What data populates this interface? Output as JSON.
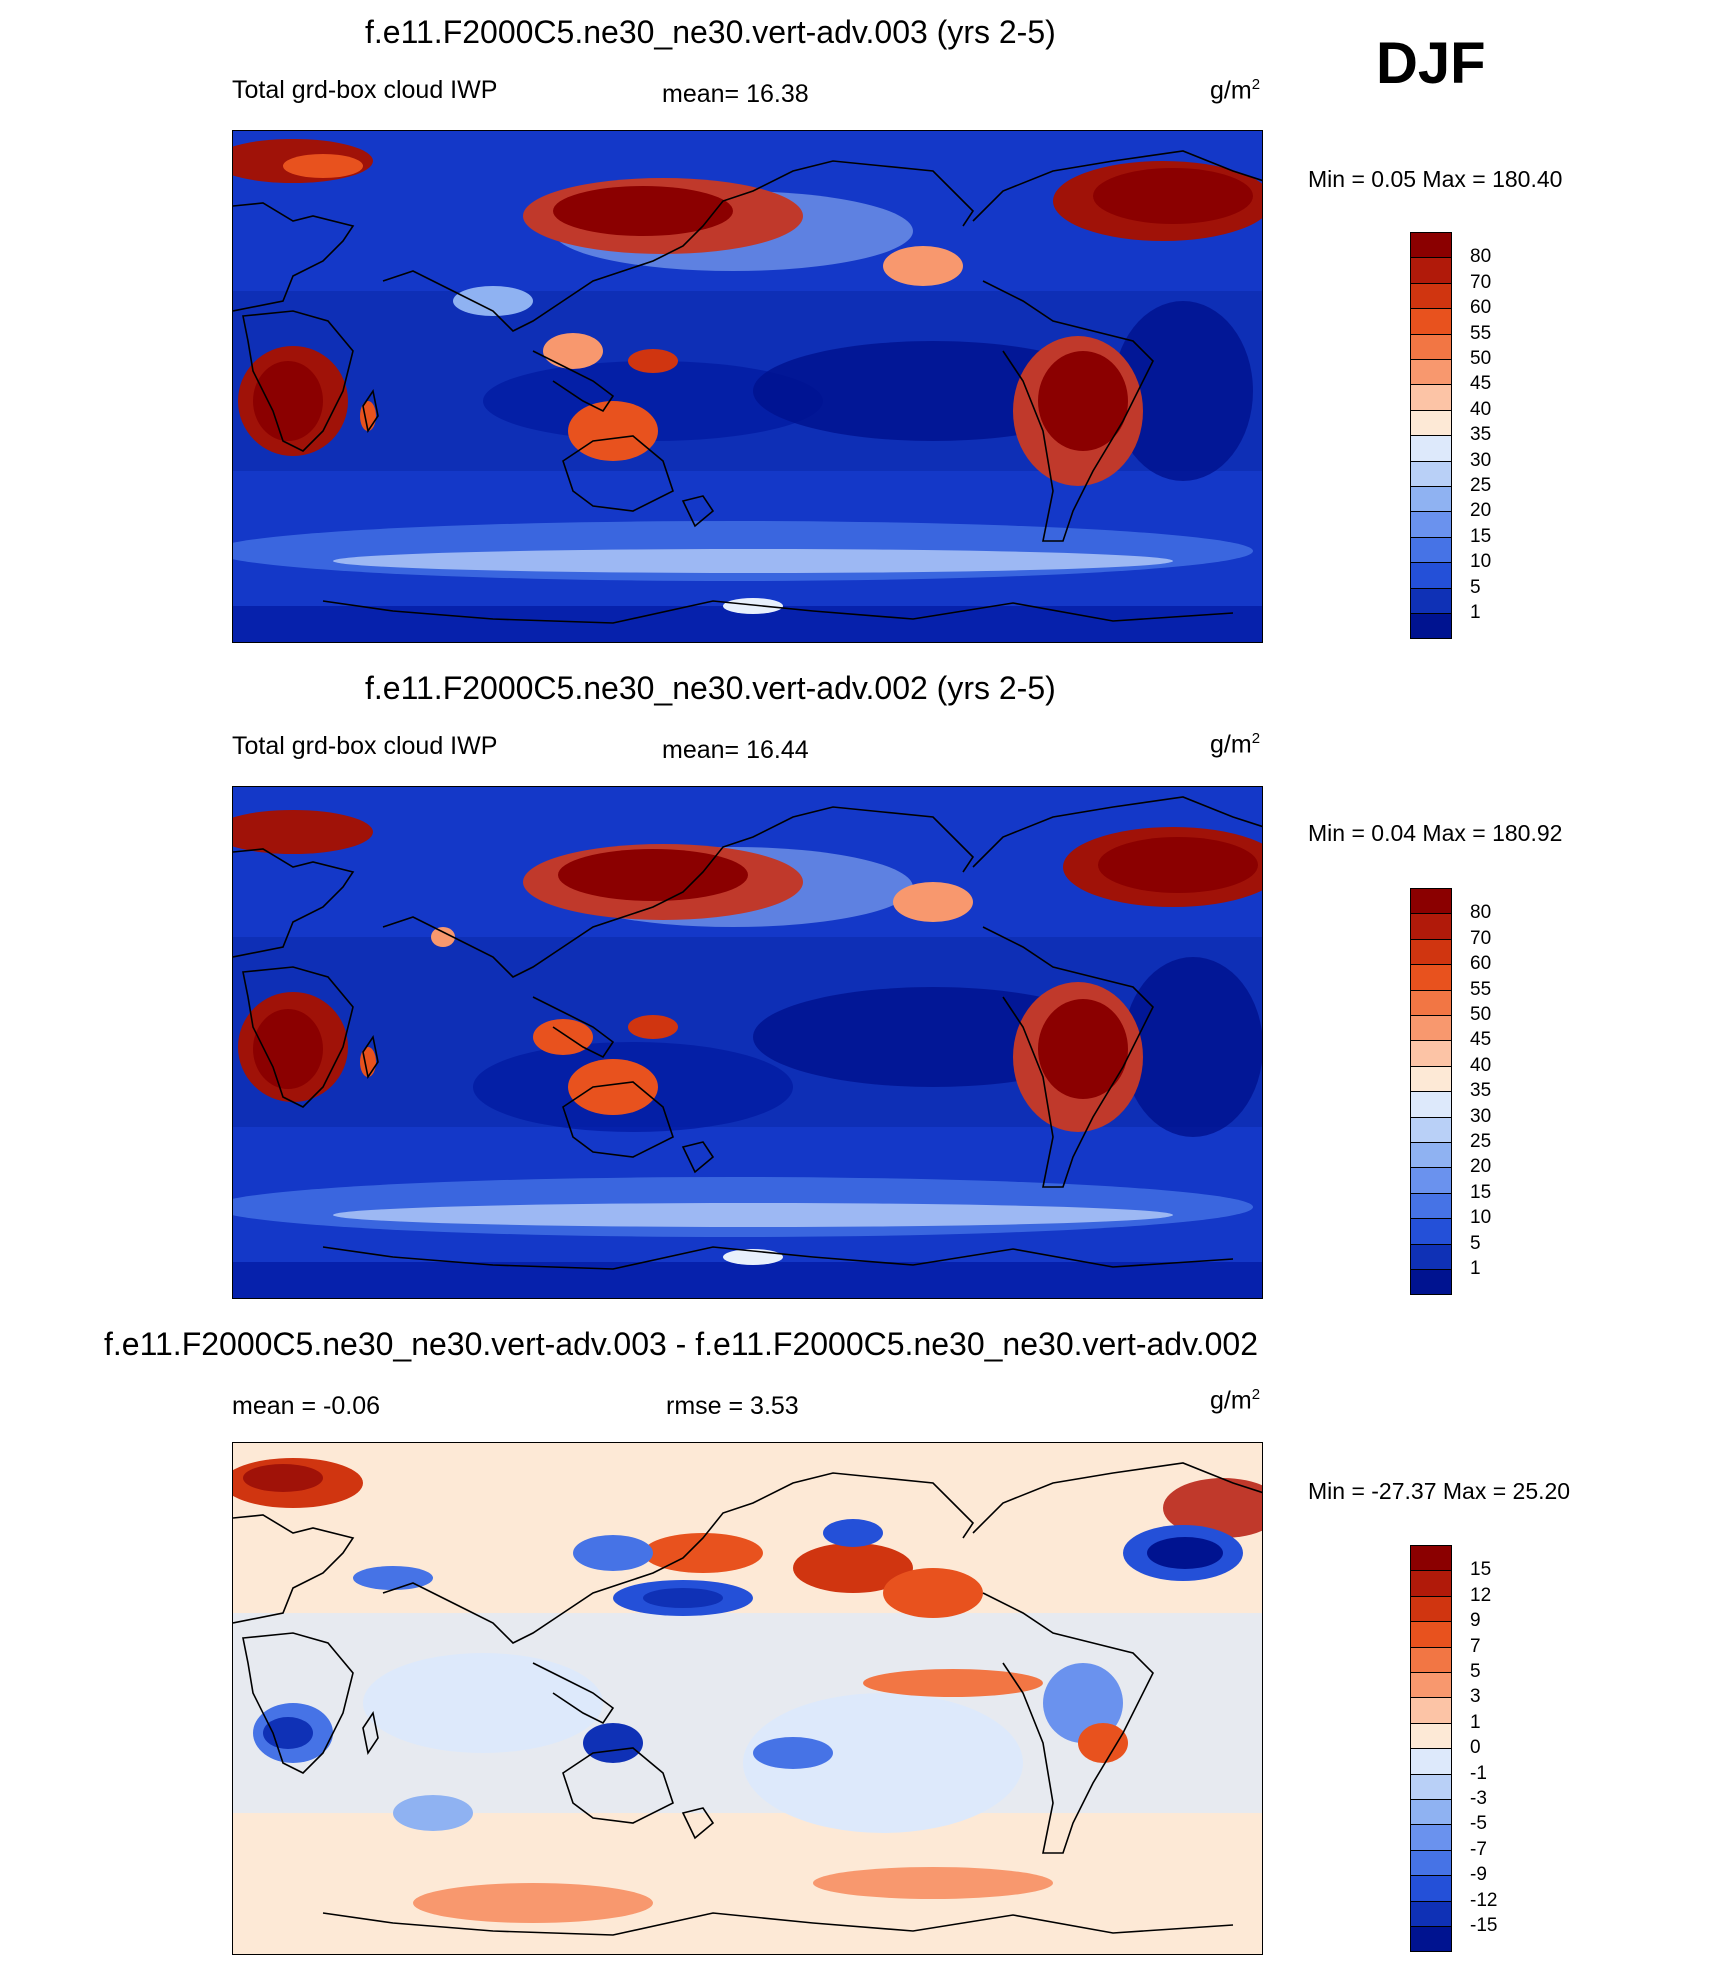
{
  "season": "DJF",
  "panels": [
    {
      "id": "top",
      "title": "f.e11.F2000C5.ne30_ne30.vert-adv.003 (yrs 2-5)",
      "variable": "Total grd-box cloud IWP",
      "stat1": "mean=  16.38",
      "stat2": "",
      "units_base": "g/m",
      "units_exp": "2",
      "minmax": "Min =    0.05 Max = 180.40",
      "colorbar_labels": [
        "80",
        "70",
        "60",
        "55",
        "50",
        "45",
        "40",
        "35",
        "30",
        "25",
        "20",
        "15",
        "10",
        "5",
        "1"
      ],
      "colorbar_colors": [
        "#8b0000",
        "#b11a0a",
        "#d03510",
        "#e8521e",
        "#f27644",
        "#f8986e",
        "#fcc4a6",
        "#fde9d6",
        "#dde9fb",
        "#b9d0f7",
        "#8fb2f2",
        "#6a92ee",
        "#4673e6",
        "#2450d8",
        "#0f31b6",
        "#001390"
      ]
    },
    {
      "id": "middle",
      "title": "f.e11.F2000C5.ne30_ne30.vert-adv.002 (yrs 2-5)",
      "variable": "Total grd-box cloud IWP",
      "stat1": "mean=  16.44",
      "stat2": "",
      "units_base": "g/m",
      "units_exp": "2",
      "minmax": "Min =    0.04 Max = 180.92",
      "colorbar_labels": [
        "80",
        "70",
        "60",
        "55",
        "50",
        "45",
        "40",
        "35",
        "30",
        "25",
        "20",
        "15",
        "10",
        "5",
        "1"
      ],
      "colorbar_colors": [
        "#8b0000",
        "#b11a0a",
        "#d03510",
        "#e8521e",
        "#f27644",
        "#f8986e",
        "#fcc4a6",
        "#fde9d6",
        "#dde9fb",
        "#b9d0f7",
        "#8fb2f2",
        "#6a92ee",
        "#4673e6",
        "#2450d8",
        "#0f31b6",
        "#001390"
      ]
    },
    {
      "id": "diff",
      "title": "f.e11.F2000C5.ne30_ne30.vert-adv.003 - f.e11.F2000C5.ne30_ne30.vert-adv.002",
      "variable": "",
      "stat1": "mean =  -0.06",
      "stat2": "rmse =   3.53",
      "units_base": "g/m",
      "units_exp": "2",
      "minmax": "Min = -27.37 Max =  25.20",
      "colorbar_labels": [
        "15",
        "12",
        "9",
        "7",
        "5",
        "3",
        "1",
        "0",
        "-1",
        "-3",
        "-5",
        "-7",
        "-9",
        "-12",
        "-15"
      ],
      "colorbar_colors": [
        "#8b0000",
        "#b11a0a",
        "#d03510",
        "#e8521e",
        "#f27644",
        "#f8986e",
        "#fcc4a6",
        "#fde9d6",
        "#dde9fb",
        "#b9d0f7",
        "#8fb2f2",
        "#6a92ee",
        "#4673e6",
        "#2450d8",
        "#0f31b6",
        "#001390"
      ]
    }
  ]
}
